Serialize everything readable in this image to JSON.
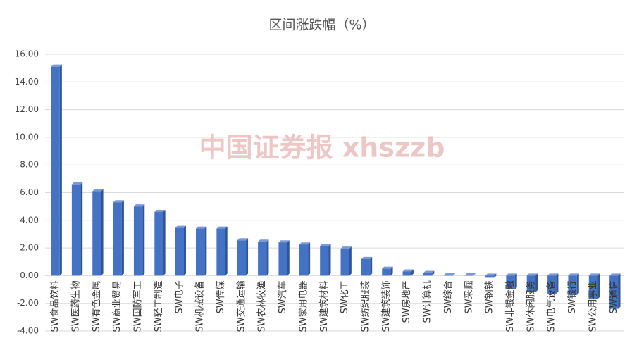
{
  "chart_data": {
    "type": "bar",
    "title": "区间涨跌幅（%）",
    "annotation": "中国证券报 xhszzb",
    "categories": [
      "SW食品饮料",
      "SW医药生物",
      "SW有色金属",
      "SW商业贸易",
      "SW国防军工",
      "SW轻工制造",
      "SW电子",
      "SW机械设备",
      "SW传媒",
      "SW交通运输",
      "SW农林牧渔",
      "SW汽车",
      "SW家用电器",
      "SW建筑材料",
      "SW化工",
      "SW纺织服装",
      "SW建筑装饰",
      "SW房地产",
      "SW计算机",
      "SW综合",
      "SW采掘",
      "SW钢铁",
      "SW非银金融",
      "SW休闲服务",
      "SW电气设备",
      "SW银行",
      "SW公用事业",
      "SW通信"
    ],
    "values": [
      15.1,
      6.6,
      6.1,
      5.3,
      5.0,
      4.6,
      3.45,
      3.4,
      3.4,
      2.55,
      2.45,
      2.4,
      2.25,
      2.15,
      1.95,
      1.2,
      0.5,
      0.3,
      0.2,
      0.05,
      0.02,
      -0.15,
      -1.0,
      -1.2,
      -1.3,
      -1.4,
      -1.7,
      -2.4
    ],
    "color": "#4472c4",
    "ylim": [
      -4,
      16
    ],
    "yticks": [
      {
        "value": -4,
        "label": "-4.00"
      },
      {
        "value": -2,
        "label": "-2.00"
      },
      {
        "value": 0,
        "label": "0.00"
      },
      {
        "value": 2,
        "label": "2.00"
      },
      {
        "value": 4,
        "label": "4.00"
      },
      {
        "value": 6,
        "label": "6.00"
      },
      {
        "value": 8,
        "label": "8.00"
      },
      {
        "value": 10,
        "label": "10.00"
      },
      {
        "value": 12,
        "label": "12.00"
      },
      {
        "value": 14,
        "label": "14.00"
      },
      {
        "value": 16,
        "label": "16.00"
      }
    ],
    "grid": true
  }
}
